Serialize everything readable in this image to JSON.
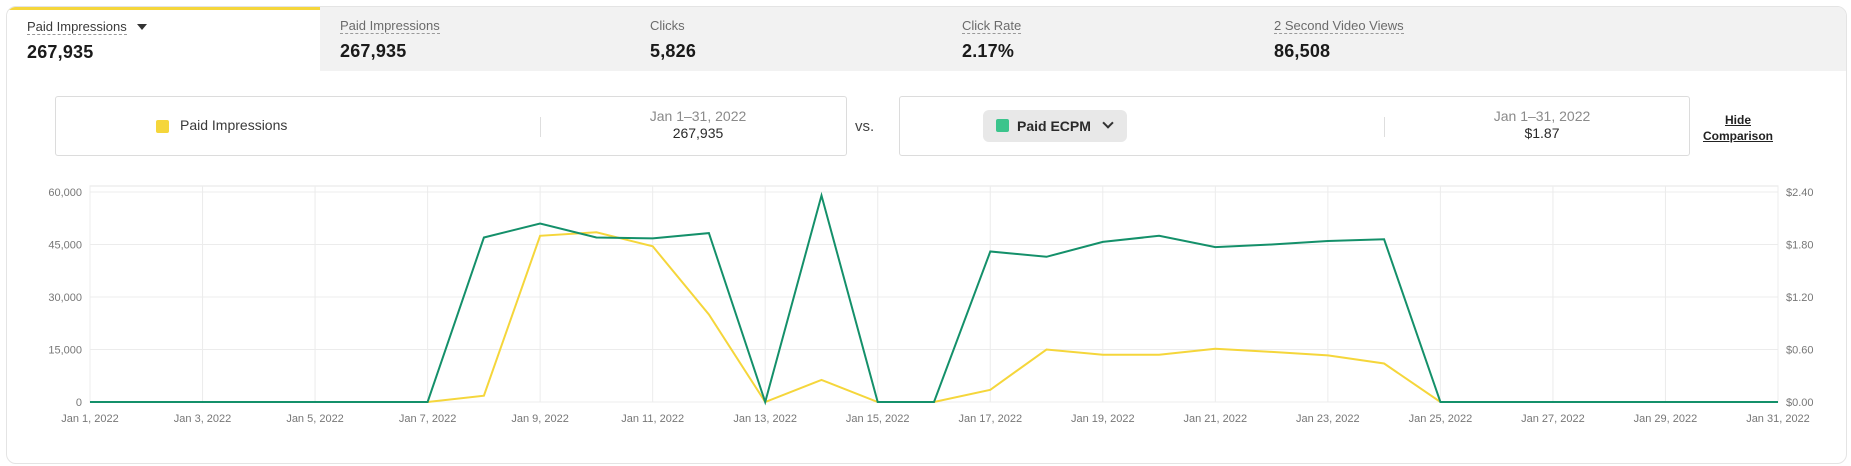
{
  "tabs": [
    {
      "label": "Paid Impressions",
      "value": "267,935",
      "active": true,
      "dropdown": true
    },
    {
      "label": "Paid Impressions",
      "value": "267,935",
      "active": false
    },
    {
      "label": "Clicks",
      "value": "5,826",
      "active": false
    },
    {
      "label": "Click Rate",
      "value": "2.17%",
      "active": false
    },
    {
      "label": "2 Second Video Views",
      "value": "86,508",
      "active": false
    }
  ],
  "comparison": {
    "primary": {
      "metric": "Paid Impressions",
      "color": "#f5d63b",
      "date_range": "Jan 1–31, 2022",
      "total": "267,935"
    },
    "vs_label": "vs.",
    "secondary": {
      "metric": "Paid ECPM",
      "color": "#3bc48c",
      "date_range": "Jan 1–31, 2022",
      "total": "$1.87"
    },
    "hide_label_1": "Hide",
    "hide_label_2": "Comparison"
  },
  "chart_data": {
    "type": "line",
    "x": [
      "Jan 1, 2022",
      "Jan 2, 2022",
      "Jan 3, 2022",
      "Jan 4, 2022",
      "Jan 5, 2022",
      "Jan 6, 2022",
      "Jan 7, 2022",
      "Jan 8, 2022",
      "Jan 9, 2022",
      "Jan 10, 2022",
      "Jan 11, 2022",
      "Jan 12, 2022",
      "Jan 13, 2022",
      "Jan 14, 2022",
      "Jan 15, 2022",
      "Jan 16, 2022",
      "Jan 17, 2022",
      "Jan 18, 2022",
      "Jan 19, 2022",
      "Jan 20, 2022",
      "Jan 21, 2022",
      "Jan 22, 2022",
      "Jan 23, 2022",
      "Jan 24, 2022",
      "Jan 25, 2022",
      "Jan 26, 2022",
      "Jan 27, 2022",
      "Jan 28, 2022",
      "Jan 29, 2022",
      "Jan 30, 2022",
      "Jan 31, 2022"
    ],
    "x_tick_labels": [
      "Jan 1, 2022",
      "Jan 3, 2022",
      "Jan 5, 2022",
      "Jan 7, 2022",
      "Jan 9, 2022",
      "Jan 11, 2022",
      "Jan 13, 2022",
      "Jan 15, 2022",
      "Jan 17, 2022",
      "Jan 19, 2022",
      "Jan 21, 2022",
      "Jan 23, 2022",
      "Jan 25, 2022",
      "Jan 27, 2022",
      "Jan 29, 2022",
      "Jan 31, 2022"
    ],
    "series": [
      {
        "name": "Paid Impressions",
        "axis": "left",
        "color": "#f5d63b",
        "values": [
          0,
          0,
          0,
          0,
          0,
          0,
          0,
          1800,
          47500,
          48500,
          44500,
          25000,
          0,
          6300,
          0,
          0,
          3500,
          15000,
          13500,
          13500,
          15200,
          14300,
          13300,
          11000,
          0,
          0,
          0,
          0,
          0,
          0,
          0
        ]
      },
      {
        "name": "Paid ECPM",
        "axis": "right",
        "color": "#14906a",
        "values": [
          0,
          0,
          0,
          0,
          0,
          0,
          0,
          1.88,
          2.04,
          1.88,
          1.87,
          1.93,
          0,
          2.36,
          0,
          0,
          1.72,
          1.66,
          1.83,
          1.9,
          1.77,
          1.8,
          1.84,
          1.86,
          0,
          0,
          0,
          0,
          0,
          0,
          0
        ]
      }
    ],
    "y_left": {
      "ticks": [
        "60,000",
        "45,000",
        "30,000",
        "15,000",
        "0"
      ],
      "ylim": [
        0,
        60000
      ]
    },
    "y_right": {
      "ticks": [
        "$2.40",
        "$1.80",
        "$1.20",
        "$0.60",
        "$0.00"
      ],
      "ylim": [
        0,
        2.4
      ]
    },
    "grid": true
  }
}
